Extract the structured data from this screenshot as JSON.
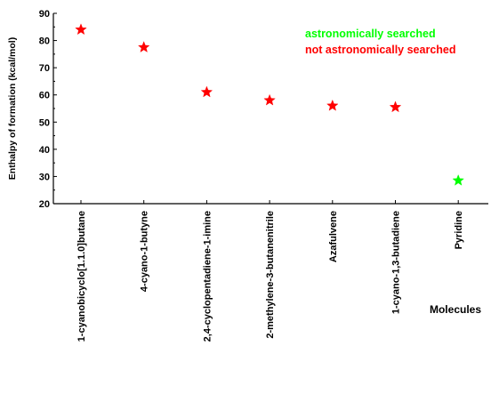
{
  "chart_data": {
    "type": "scatter",
    "title": "",
    "xlabel": "Molecules",
    "ylabel": "Enthalpy of formation (kcal/mol)",
    "ylim": [
      20,
      90
    ],
    "yticks": [
      20,
      30,
      40,
      50,
      60,
      70,
      80,
      90
    ],
    "categories": [
      "1-cyanobicyclo[1.1.0]butane",
      "4-cyano-1-butyne",
      "2,4-cyclopentadiene-1-imine",
      "2-methylene-3-butanenitrile",
      "Azafulvene",
      "1-cyano-1,3-butadiene",
      "Pyridine"
    ],
    "values": [
      84,
      77.5,
      61,
      58,
      56,
      55.5,
      28.5
    ],
    "point_status": [
      "not",
      "not",
      "not",
      "not",
      "not",
      "not",
      "searched"
    ],
    "series": [
      {
        "name": "astronomically searched",
        "color": "#00ff00"
      },
      {
        "name": "not astronomically searched",
        "color": "#ff0000"
      }
    ],
    "marker": "star",
    "grid": false,
    "legend_position": "top-right"
  }
}
